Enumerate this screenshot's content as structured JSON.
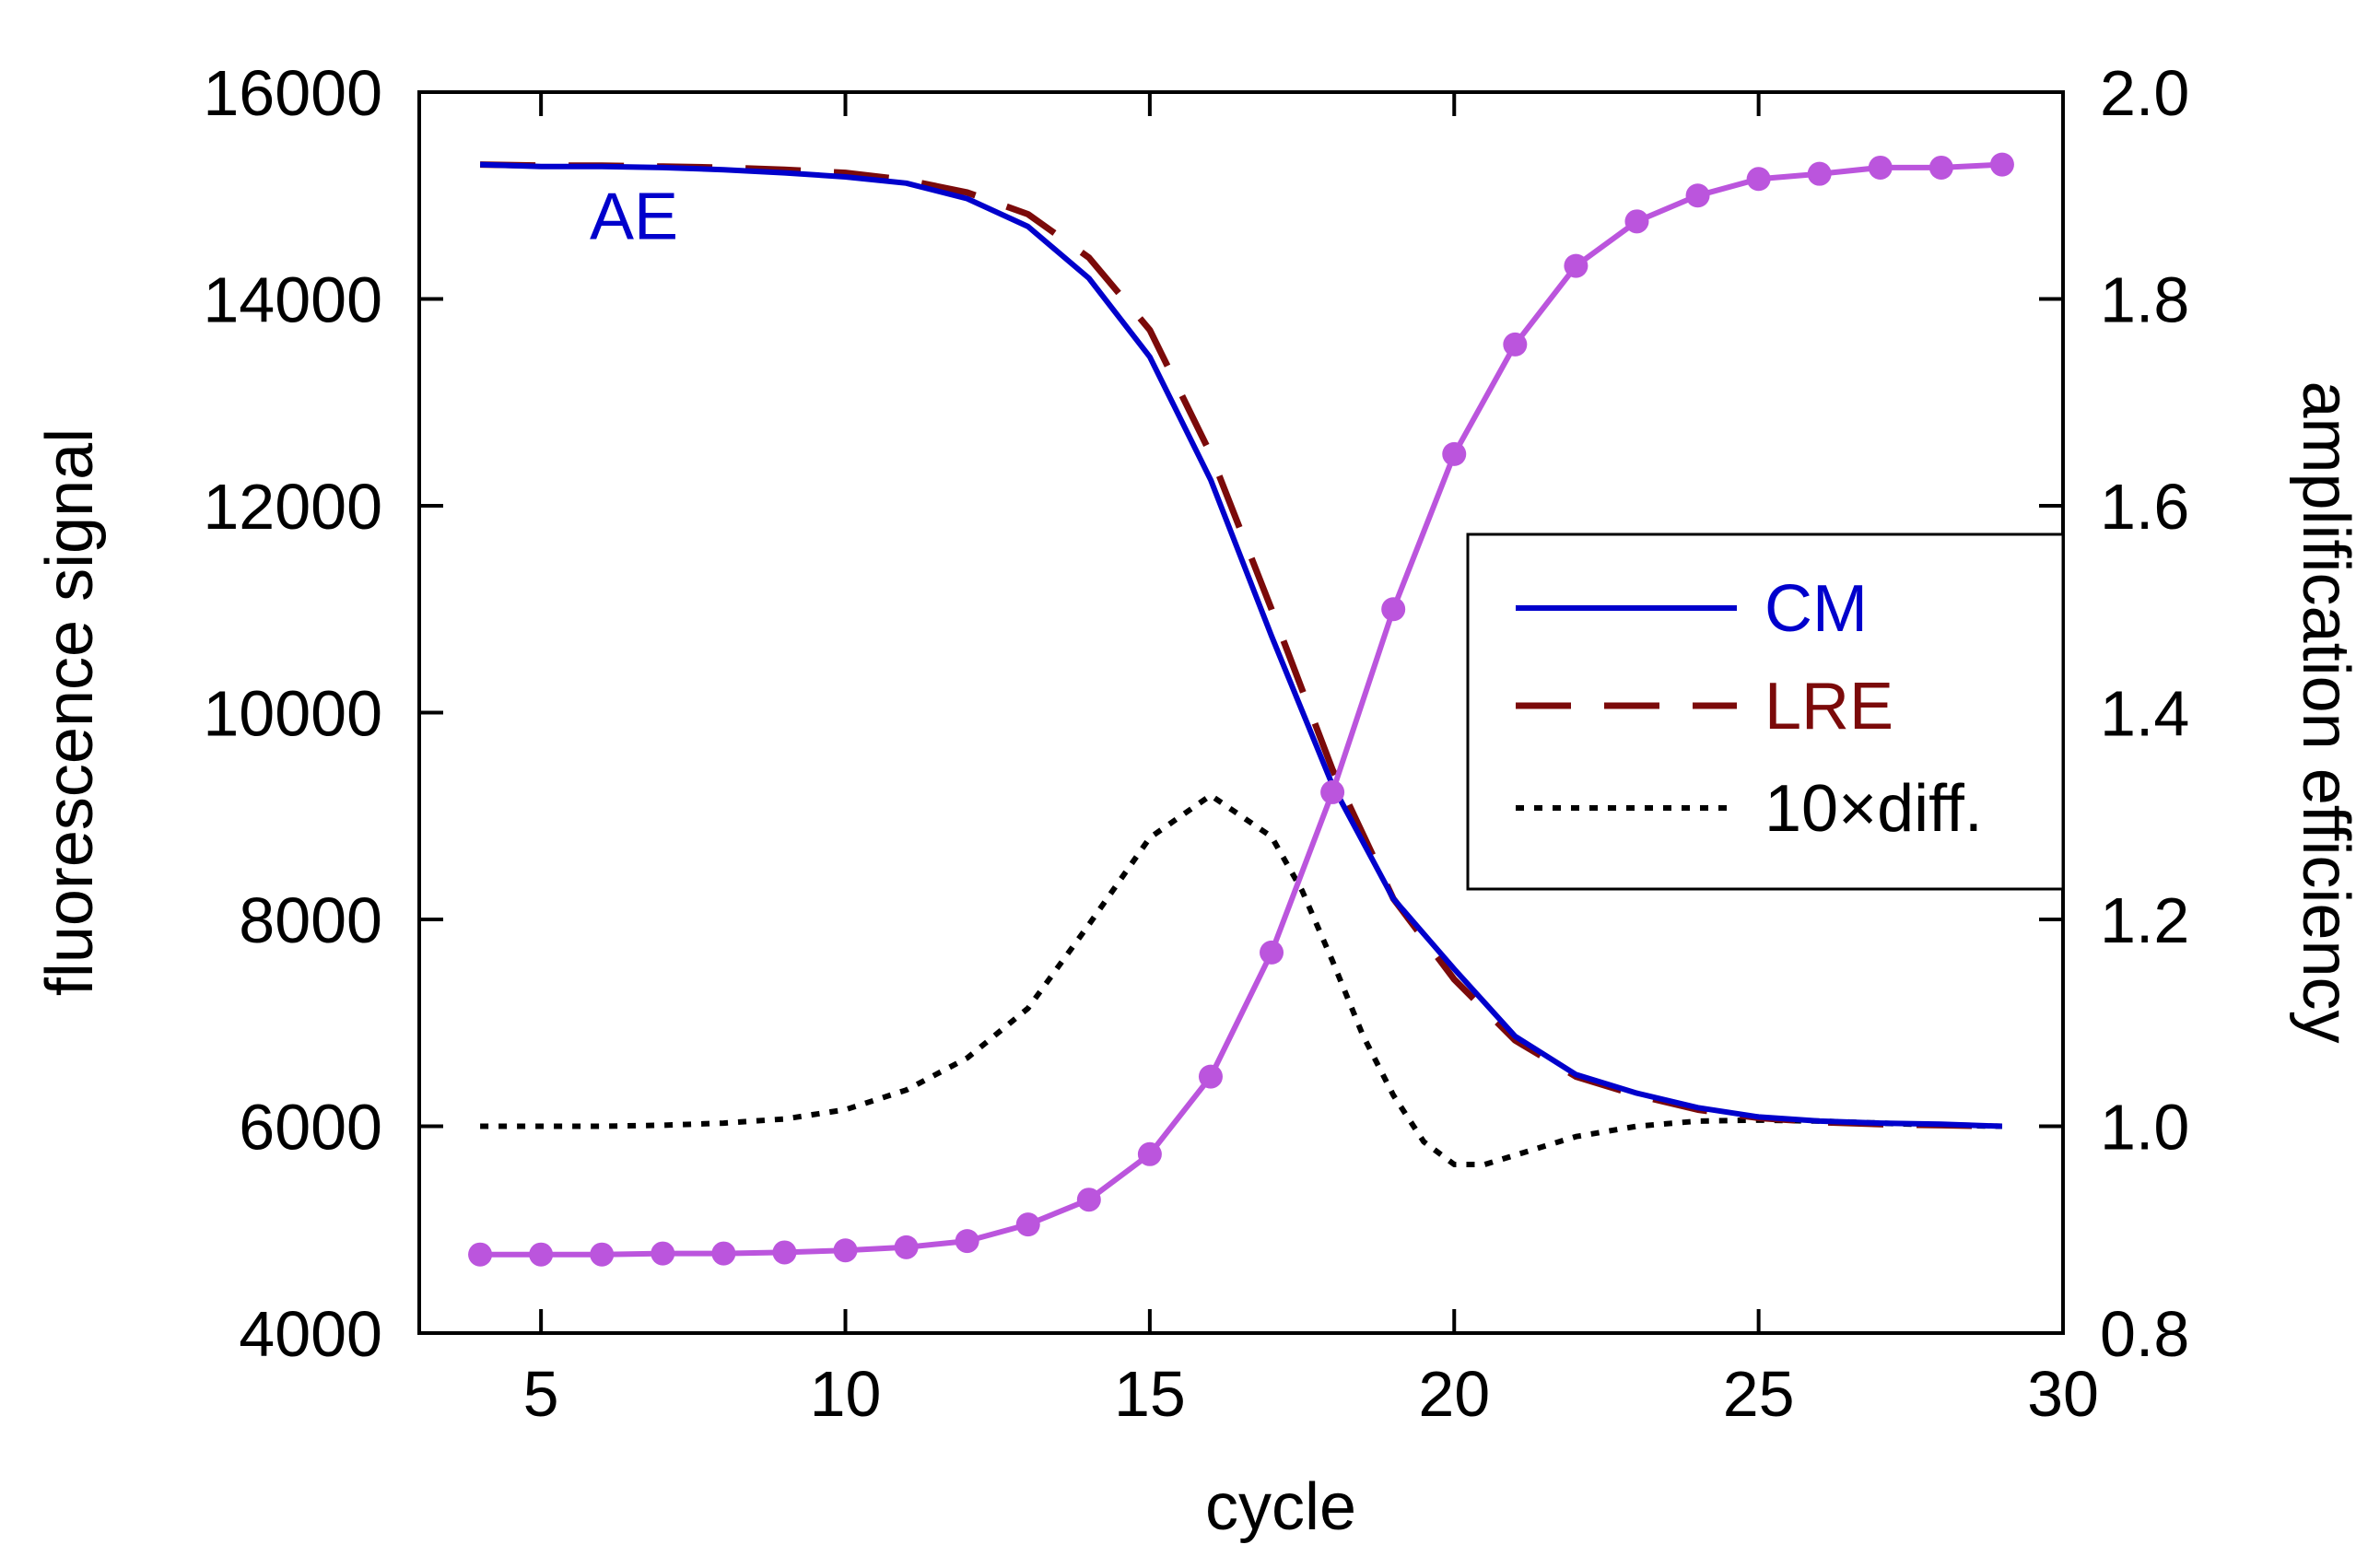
{
  "chart_data": {
    "type": "line",
    "title": "",
    "xlabel": "cycle",
    "ylabel_left": "fluorescence signal",
    "ylabel_right": "amplification efficiency",
    "xlim": [
      3,
      30
    ],
    "ylim_left": [
      4000,
      16000
    ],
    "ylim_right": [
      0.8,
      2.0
    ],
    "x_ticks": [
      5,
      10,
      15,
      20,
      25,
      30
    ],
    "x_tick_labels": [
      "5",
      "10",
      "15",
      "20",
      "25",
      "30"
    ],
    "y_left_ticks": [
      4000,
      6000,
      8000,
      10000,
      12000,
      14000,
      16000
    ],
    "y_left_tick_labels": [
      "4000",
      "6000",
      "8000",
      "10000",
      "12000",
      "14000",
      "16000"
    ],
    "y_right_ticks": [
      0.8,
      1.0,
      1.2,
      1.4,
      1.6,
      1.8,
      2.0
    ],
    "y_right_tick_labels": [
      "0.8",
      "1.0",
      "1.2",
      "1.4",
      "1.6",
      "1.8",
      "2.0"
    ],
    "grid": false,
    "legend_position": "right-middle",
    "annotation": {
      "text": "AE",
      "x": 5.8,
      "y": 1.88,
      "color": "#0000cc"
    },
    "series": [
      {
        "name": "AE",
        "axis": "left",
        "style": "solid-markers",
        "color": "#bb55dd",
        "x": [
          4,
          5,
          6,
          7,
          8,
          9,
          10,
          11,
          12,
          13,
          14,
          15,
          16,
          17,
          18,
          19,
          20,
          21,
          22,
          23,
          24,
          25,
          26,
          27,
          28,
          29
        ],
        "y": [
          4760,
          4760,
          4760,
          4770,
          4770,
          4780,
          4800,
          4830,
          4890,
          5050,
          5290,
          5730,
          6480,
          7680,
          9230,
          11000,
          12500,
          13560,
          14320,
          14750,
          15000,
          15160,
          15210,
          15270,
          15270,
          15300
        ]
      },
      {
        "name": "CM",
        "axis": "right",
        "style": "solid",
        "color": "#0000cc",
        "x": [
          4,
          5,
          6,
          7,
          8,
          9,
          10,
          11,
          12,
          13,
          14,
          15,
          16,
          17,
          18,
          19,
          20,
          21,
          22,
          23,
          24,
          25,
          26,
          27,
          28,
          29
        ],
        "y": [
          1.93,
          1.928,
          1.928,
          1.927,
          1.925,
          1.922,
          1.918,
          1.912,
          1.897,
          1.87,
          1.82,
          1.744,
          1.625,
          1.474,
          1.33,
          1.22,
          1.152,
          1.087,
          1.05,
          1.032,
          1.018,
          1.009,
          1.005,
          1.003,
          1.002,
          1.0
        ]
      },
      {
        "name": "LRE",
        "axis": "right",
        "style": "dashed",
        "color": "#7b0a0a",
        "x": [
          4,
          5,
          6,
          7,
          8,
          9,
          10,
          11,
          12,
          13,
          14,
          15,
          16,
          17,
          18,
          19,
          20,
          21,
          22,
          23,
          24,
          25,
          26,
          27,
          28,
          29
        ],
        "y": [
          1.93,
          1.929,
          1.929,
          1.928,
          1.927,
          1.925,
          1.922,
          1.915,
          1.903,
          1.882,
          1.84,
          1.77,
          1.65,
          1.5,
          1.345,
          1.22,
          1.142,
          1.083,
          1.048,
          1.03,
          1.016,
          1.008,
          1.004,
          1.002,
          1.001,
          1.0
        ]
      },
      {
        "name": "10×diff.",
        "axis": "right",
        "style": "dotted",
        "color": "#000000",
        "x": [
          4,
          5,
          6,
          7,
          8,
          9,
          10,
          11,
          12,
          13,
          14,
          15,
          16,
          17,
          17.5,
          18,
          18.5,
          19,
          19.5,
          20,
          20.5,
          21,
          22,
          23,
          24,
          25,
          26,
          27,
          28,
          29
        ],
        "y": [
          1.0,
          1.0,
          1.0,
          1.001,
          1.003,
          1.007,
          1.016,
          1.035,
          1.066,
          1.114,
          1.195,
          1.279,
          1.32,
          1.28,
          1.228,
          1.16,
          1.088,
          1.03,
          0.985,
          0.963,
          0.963,
          0.972,
          0.99,
          1.0,
          1.005,
          1.006,
          1.005,
          1.003,
          1.001,
          1.0
        ]
      }
    ]
  }
}
